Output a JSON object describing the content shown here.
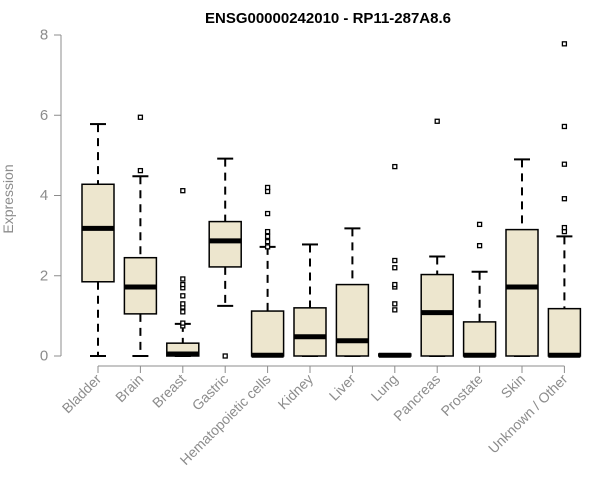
{
  "chart_data": {
    "type": "box",
    "title": "ENSG00000242010 - RP11-287A8.6",
    "ylabel": "Expression",
    "xlabel": "",
    "ylim": [
      0,
      8
    ],
    "yticks": [
      0,
      2,
      4,
      6,
      8
    ],
    "grid": false,
    "box_fill": "#ede6ce",
    "categories": [
      "Bladder",
      "Brain",
      "Breast",
      "Gastric",
      "Hematopoietic cells",
      "Kidney",
      "Liver",
      "Lung",
      "Pancreas",
      "Prostate",
      "Skin",
      "Unknown / Other"
    ],
    "boxes": [
      {
        "whisker_low": 0,
        "q1": 1.85,
        "median": 3.18,
        "q3": 4.28,
        "whisker_high": 5.78,
        "outliers": []
      },
      {
        "whisker_low": 0,
        "q1": 1.05,
        "median": 1.72,
        "q3": 2.45,
        "whisker_high": 4.48,
        "outliers": [
          4.62,
          5.95
        ]
      },
      {
        "whisker_low": 0,
        "q1": 0,
        "median": 0.05,
        "q3": 0.32,
        "whisker_high": 0.8,
        "outliers": [
          0.75,
          0.82,
          1.1,
          1.22,
          1.3,
          1.5,
          1.7,
          1.78,
          1.92,
          4.12
        ]
      },
      {
        "whisker_low": 1.25,
        "q1": 2.22,
        "median": 2.87,
        "q3": 3.35,
        "whisker_high": 4.92,
        "outliers": [
          0
        ]
      },
      {
        "whisker_low": 0,
        "q1": 0,
        "median": 0.02,
        "q3": 1.12,
        "whisker_high": 2.72,
        "outliers": [
          2.72,
          2.85,
          2.98,
          3.1,
          3.55,
          4.1,
          4.2
        ]
      },
      {
        "whisker_low": 0,
        "q1": 0,
        "median": 0.48,
        "q3": 1.2,
        "whisker_high": 2.78,
        "outliers": []
      },
      {
        "whisker_low": 0,
        "q1": 0,
        "median": 0.38,
        "q3": 1.78,
        "whisker_high": 3.18,
        "outliers": []
      },
      {
        "whisker_low": 0,
        "q1": 0,
        "median": 0.02,
        "q3": 0.05,
        "whisker_high": 0.05,
        "outliers": [
          1.15,
          1.3,
          1.72,
          1.78,
          2.2,
          2.38,
          4.72
        ]
      },
      {
        "whisker_low": 0,
        "q1": 0,
        "median": 1.08,
        "q3": 2.03,
        "whisker_high": 2.48,
        "outliers": [
          5.85
        ]
      },
      {
        "whisker_low": 0,
        "q1": 0,
        "median": 0.02,
        "q3": 0.85,
        "whisker_high": 2.1,
        "outliers": [
          2.75,
          3.28
        ]
      },
      {
        "whisker_low": 0,
        "q1": 0,
        "median": 1.72,
        "q3": 3.15,
        "whisker_high": 4.9,
        "outliers": []
      },
      {
        "whisker_low": 0,
        "q1": 0,
        "median": 0.02,
        "q3": 1.18,
        "whisker_high": 2.98,
        "outliers": [
          3.1,
          3.2,
          3.92,
          4.78,
          5.72,
          7.78
        ]
      }
    ]
  }
}
